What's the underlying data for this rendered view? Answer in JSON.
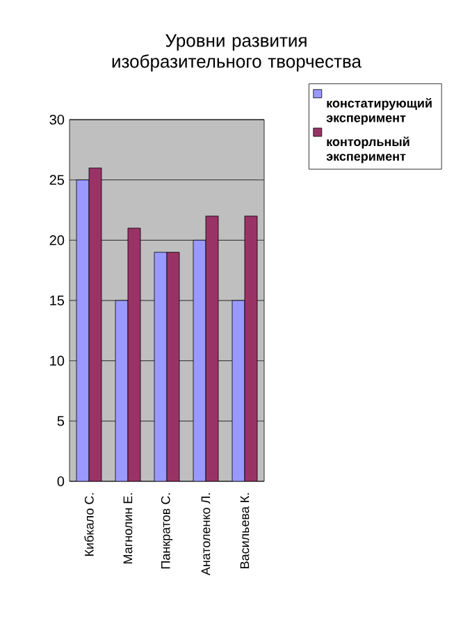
{
  "chart_data": {
    "type": "bar",
    "title": "Уровни развития изобразительного творчества",
    "categories": [
      "Кибкало С.",
      "Магнолин Е.",
      "Панкратов С.",
      "Анатоленко Л.",
      "Васильева К."
    ],
    "series": [
      {
        "name": "констатирующий эксперимент",
        "color": "#9999ff",
        "values": [
          25,
          15,
          19,
          20,
          15
        ]
      },
      {
        "name": "конторльный эксперимент",
        "color": "#993366",
        "values": [
          26,
          21,
          19,
          22,
          22
        ]
      }
    ],
    "ylim": [
      0,
      30
    ],
    "yticks": [
      0,
      5,
      10,
      15,
      20,
      25,
      30
    ],
    "grid": "y",
    "legend": "top right"
  }
}
